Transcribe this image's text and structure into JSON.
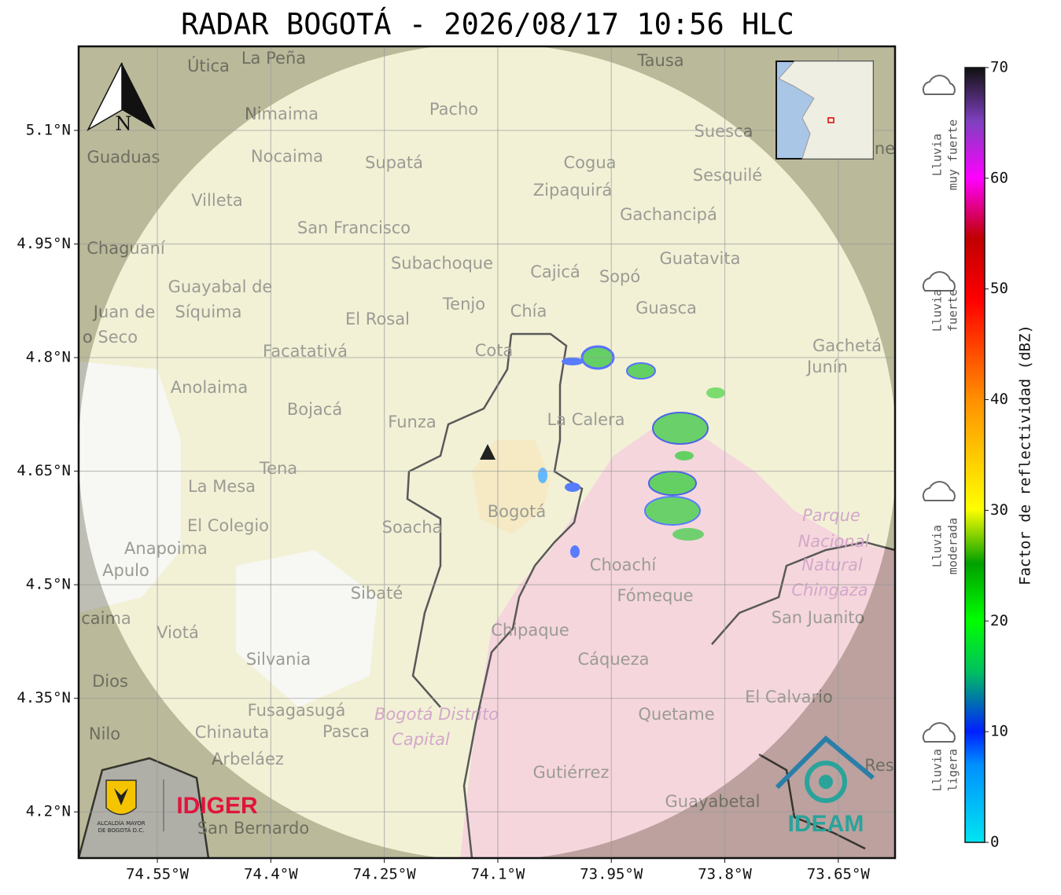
{
  "title": "RADAR BOGOTÁ - 2026/08/17 10:56 HLC",
  "map": {
    "latlim": [
      4.139,
      5.211
    ],
    "lonlim": [
      -74.654,
      -73.575
    ],
    "lat_ticks": [
      {
        "value": 5.1,
        "label": "5.1°N"
      },
      {
        "value": 4.95,
        "label": "4.95°N"
      },
      {
        "value": 4.8,
        "label": "4.8°N"
      },
      {
        "value": 4.65,
        "label": "4.65°N"
      },
      {
        "value": 4.5,
        "label": "4.5°N"
      },
      {
        "value": 4.35,
        "label": "4.35°N"
      },
      {
        "value": 4.2,
        "label": "4.2°N"
      }
    ],
    "lon_ticks": [
      {
        "value": -74.55,
        "label": "74.55°W"
      },
      {
        "value": -74.4,
        "label": "74.4°W"
      },
      {
        "value": -74.25,
        "label": "74.25°W"
      },
      {
        "value": -74.1,
        "label": "74.1°W"
      },
      {
        "value": -73.95,
        "label": "73.95°W"
      },
      {
        "value": -73.8,
        "label": "73.8°W"
      },
      {
        "value": -73.65,
        "label": "73.65°W"
      }
    ],
    "places": [
      "La Peña",
      "Útica",
      "Tausa",
      "Pacho",
      "Nimaima",
      "Guaduas",
      "Nocaima",
      "Supatá",
      "Cogua",
      "Suesca",
      "Sesquilé",
      "Zipaquirá",
      "Villeta",
      "Gachancipá",
      "San Francisco",
      "Chaguaní",
      "Subachoque",
      "Cajicá",
      "Sopó",
      "Guatavita",
      "Guayabal de",
      "Síquima",
      "Juan de",
      "Tenjo",
      "Chía",
      "Guasca",
      "El Rosal",
      "o Seco",
      "Facatativá",
      "Cota",
      "Gachetá",
      "Junín",
      "Anolaima",
      "Bojacá",
      "Funza",
      "La Calera",
      "Tena",
      "La Mesa",
      "Bogotá",
      "Parque",
      "Nacional",
      "Natural",
      "Chingaza",
      "El Colegio",
      "Soacha",
      "Anapoima",
      "Apulo",
      "Choachí",
      "Sibaté",
      "Fómeque",
      "San Juanito",
      "caima",
      "Viotá",
      "Chipaque",
      "Silvania",
      "Cáqueza",
      "Dios",
      "El Calvario",
      "Fusagasugá",
      "Bogotá Distrito",
      "Capital",
      "Quetame",
      "Nilo",
      "Chinauta",
      "Pasca",
      "Arbeláez",
      "Gutiérrez",
      "Guayabetal",
      "San Bernardo",
      "Res",
      "ne"
    ],
    "north": "N"
  },
  "colorbar": {
    "label": "Factor de reflectividad (dBZ)",
    "lim": [
      0,
      70
    ],
    "ticks": [
      0,
      10,
      20,
      30,
      40,
      50,
      60,
      70
    ],
    "classes": [
      {
        "lines": [
          "Lluvia",
          "muy fuerte"
        ]
      },
      {
        "lines": [
          "Lluvia",
          "fuerte"
        ]
      },
      {
        "lines": [
          "Lluvia",
          "moderada"
        ]
      },
      {
        "lines": [
          "Lluvia",
          "ligera"
        ]
      }
    ]
  },
  "logos": {
    "alcaldia": [
      "ALCALDÍA MAYOR",
      "DE BOGOTÁ D.C."
    ],
    "idiger": "IDIGER",
    "ideam": "IDEAM"
  }
}
